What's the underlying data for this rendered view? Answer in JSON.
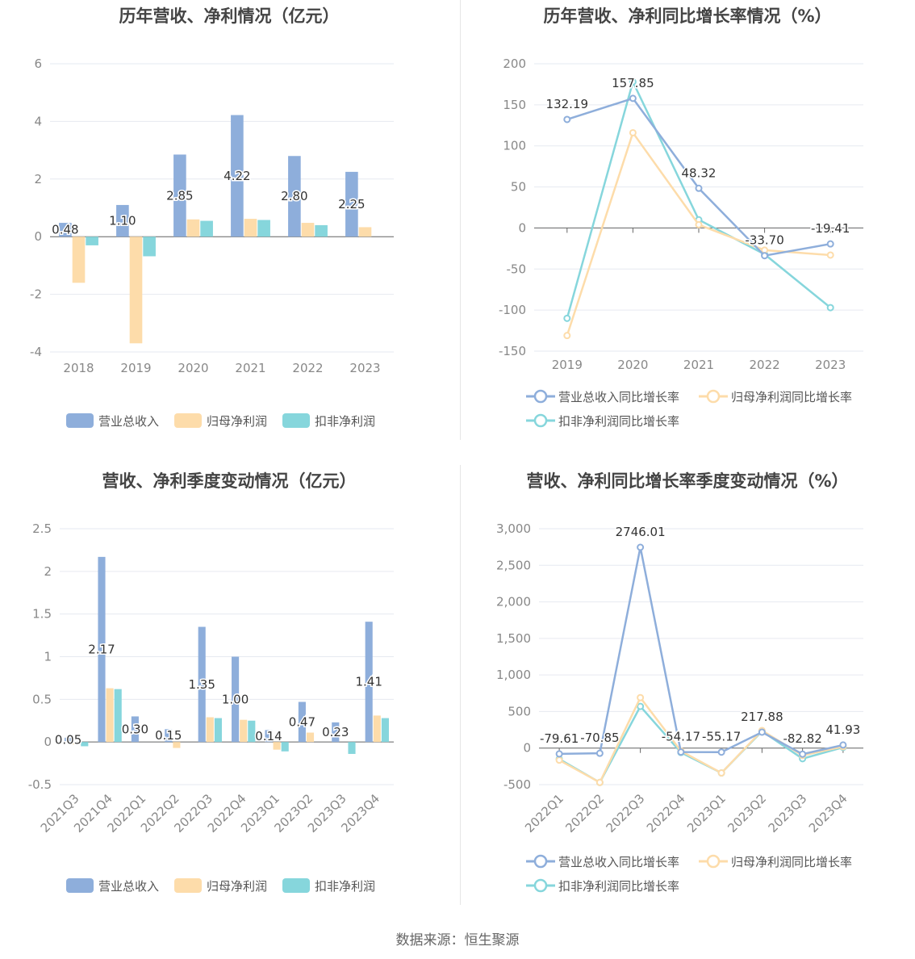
{
  "source_label": "数据来源：恒生聚源",
  "colors": {
    "revenue": "#8eaedb",
    "parent_net": "#fddcaa",
    "deducted_net": "#86d6dc",
    "grid": "#e6e9f0",
    "axis_text": "#888888"
  },
  "chart_data": [
    {
      "type": "bar",
      "title": "历年营收、净利情况（亿元）",
      "categories": [
        "2018",
        "2019",
        "2020",
        "2021",
        "2022",
        "2023"
      ],
      "ylim": [
        -4,
        6
      ],
      "yticks": [
        "-4",
        "-2",
        "0",
        "2",
        "4",
        "6"
      ],
      "series": [
        {
          "name": "营业总收入",
          "values": [
            0.48,
            1.1,
            2.85,
            4.22,
            2.8,
            2.25
          ],
          "labels": [
            "0.48",
            "1.10",
            "2.85",
            "4.22",
            "2.80",
            "2.25"
          ]
        },
        {
          "name": "归母净利润",
          "values": [
            -1.6,
            -3.7,
            0.6,
            0.62,
            0.48,
            0.33
          ]
        },
        {
          "name": "扣非净利润",
          "values": [
            -0.3,
            -0.68,
            0.55,
            0.58,
            0.4,
            0.0
          ]
        }
      ],
      "legend": "bottom",
      "grid": true
    },
    {
      "type": "line",
      "title": "历年营收、净利同比增长率情况（%）",
      "categories": [
        "2019",
        "2020",
        "2021",
        "2022",
        "2023"
      ],
      "ylim": [
        -150,
        200
      ],
      "yticks": [
        "-150",
        "-100",
        "-50",
        "0",
        "50",
        "100",
        "150",
        "200"
      ],
      "series": [
        {
          "name": "营业总收入同比增长率",
          "values": [
            132.19,
            157.85,
            48.32,
            -33.7,
            -19.41
          ],
          "labels": [
            "132.19",
            "157.85",
            "48.32",
            "-33.70",
            "-19.41"
          ]
        },
        {
          "name": "归母净利润同比增长率",
          "values": [
            -131,
            116,
            4,
            -27,
            -33
          ]
        },
        {
          "name": "扣非净利润同比增长率",
          "values": [
            -110,
            178,
            10,
            -32,
            -97
          ]
        }
      ],
      "legend": "bottom",
      "grid": true
    },
    {
      "type": "bar",
      "title": "营收、净利季度变动情况（亿元）",
      "categories": [
        "2021Q3",
        "2021Q4",
        "2022Q1",
        "2022Q2",
        "2022Q3",
        "2022Q4",
        "2023Q1",
        "2023Q2",
        "2023Q3",
        "2023Q4"
      ],
      "ylim": [
        -0.5,
        2.5
      ],
      "yticks": [
        "-0.5",
        "0",
        "0.5",
        "1",
        "1.5",
        "2",
        "2.5"
      ],
      "series": [
        {
          "name": "营业总收入",
          "values": [
            0.05,
            2.17,
            0.3,
            0.15,
            1.35,
            1.0,
            0.14,
            0.47,
            0.23,
            1.41
          ],
          "labels": [
            "0.05",
            "2.17",
            "0.30",
            "0.15",
            "1.35",
            "1.00",
            "0.14",
            "0.47",
            "0.23",
            "1.41"
          ]
        },
        {
          "name": "归母净利润",
          "values": [
            -0.03,
            0.63,
            0.0,
            -0.07,
            0.29,
            0.26,
            -0.09,
            0.11,
            0.0,
            0.31
          ]
        },
        {
          "name": "扣非净利润",
          "values": [
            -0.05,
            0.62,
            0.0,
            0.0,
            0.28,
            0.25,
            -0.11,
            0.0,
            -0.14,
            0.28
          ]
        }
      ],
      "legend": "bottom",
      "grid": true
    },
    {
      "type": "line",
      "title": "营收、净利同比增长率季度变动情况（%）",
      "categories": [
        "2022Q1",
        "2022Q2",
        "2022Q3",
        "2022Q4",
        "2023Q1",
        "2023Q2",
        "2023Q3",
        "2023Q4"
      ],
      "ylim": [
        -500,
        3000
      ],
      "yticks": [
        "-500",
        "0",
        "500",
        "1,000",
        "1,500",
        "2,000",
        "2,500",
        "3,000"
      ],
      "series": [
        {
          "name": "营业总收入同比增长率",
          "values": [
            -79.61,
            -70.85,
            2746.01,
            -54.17,
            -55.17,
            217.88,
            -82.82,
            41.93
          ],
          "labels": [
            "-79.61",
            "-70.85",
            "2746.01",
            "-54.17",
            "-55.17",
            "217.88",
            "-82.82",
            "41.93"
          ]
        },
        {
          "name": "归母净利润同比增长率",
          "values": [
            -165,
            -470,
            690,
            -40,
            -340,
            240,
            -100,
            20
          ]
        },
        {
          "name": "扣非净利润同比增长率",
          "values": [
            -150,
            -470,
            570,
            -60,
            -340,
            230,
            -145,
            10
          ]
        }
      ],
      "legend": "bottom",
      "grid": true
    }
  ]
}
